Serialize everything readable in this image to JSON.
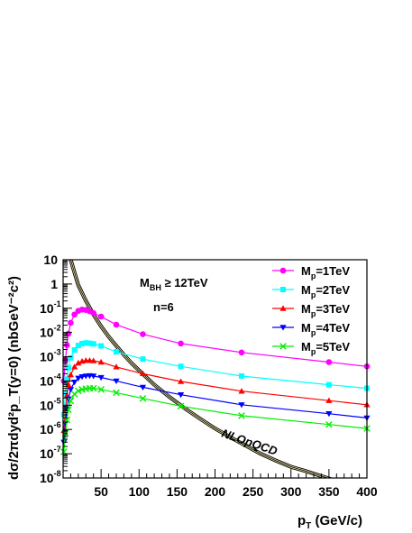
{
  "chart_data": {
    "type": "line",
    "title": "",
    "xlabel": {
      "main": "p",
      "sub": "T",
      "rest": " (GeV/c)"
    },
    "ylabel": "dσ/2πdyd²p_T(y=0) (nbGeV⁻²c²)",
    "xlim": [
      0,
      400
    ],
    "ylim": [
      1e-08,
      10
    ],
    "ylog": true,
    "grid": false,
    "legend_position": "top-right",
    "x_ticks": [
      "50",
      "100",
      "150",
      "200",
      "250",
      "300",
      "350",
      "400"
    ],
    "y_ticks": [
      {
        "base": "10",
        "exp": "-8"
      },
      {
        "base": "10",
        "exp": "-7"
      },
      {
        "base": "10",
        "exp": "-6"
      },
      {
        "base": "10",
        "exp": "-5"
      },
      {
        "base": "10",
        "exp": "-4"
      },
      {
        "base": "10",
        "exp": "-3"
      },
      {
        "base": "10",
        "exp": "-2"
      },
      {
        "base": "10",
        "exp": "-1"
      },
      {
        "base": "1",
        "exp": ""
      },
      {
        "base": "10",
        "exp": ""
      }
    ],
    "annotations": {
      "mbh": {
        "main": "M",
        "sub": "BH",
        "rest": " ≥ 12TeV"
      },
      "n": "n=6",
      "nlo": "NLOpQCD"
    },
    "series": [
      {
        "name": "M_p=1TeV",
        "label_main": "M",
        "label_sub": "p",
        "label_rest": "=1TeV",
        "color": "#ff00ff",
        "marker": "circle",
        "x": [
          1,
          3,
          5,
          7,
          10,
          15,
          20,
          25,
          30,
          35,
          40,
          50,
          70,
          105,
          155,
          235,
          350,
          400
        ],
        "y": [
          0.0001,
          0.0007,
          0.003,
          0.009,
          0.025,
          0.055,
          0.078,
          0.088,
          0.085,
          0.075,
          0.063,
          0.045,
          0.021,
          0.0085,
          0.0035,
          0.0015,
          0.0006,
          0.0004
        ]
      },
      {
        "name": "M_p=2TeV",
        "label_main": "M",
        "label_sub": "p",
        "label_rest": "=2TeV",
        "color": "#00ffff",
        "marker": "square",
        "x": [
          1,
          3,
          5,
          7,
          10,
          15,
          20,
          25,
          30,
          35,
          40,
          50,
          70,
          105,
          155,
          235,
          350,
          400
        ],
        "y": [
          4e-06,
          3e-05,
          0.00012,
          0.00035,
          0.0009,
          0.0019,
          0.0029,
          0.0035,
          0.0037,
          0.0036,
          0.0034,
          0.0028,
          0.0016,
          0.0008,
          0.0004,
          0.00016,
          7e-05,
          5e-05
        ]
      },
      {
        "name": "M_p=3TeV",
        "label_main": "M",
        "label_sub": "p",
        "label_rest": "=3TeV",
        "color": "#ff0000",
        "marker": "triangle-up",
        "x": [
          1,
          3,
          5,
          7,
          10,
          15,
          20,
          25,
          30,
          35,
          40,
          50,
          70,
          105,
          155,
          235,
          350,
          400
        ],
        "y": [
          9e-07,
          6e-06,
          2.5e-05,
          7e-05,
          0.00018,
          0.00038,
          0.00055,
          0.00065,
          0.0007,
          0.0007,
          0.00068,
          0.0006,
          0.00038,
          0.0002,
          9.5e-05,
          3.8e-05,
          1.55e-05,
          1.05e-05
        ]
      },
      {
        "name": "M_p=4TeV",
        "label_main": "M",
        "label_sub": "p",
        "label_rest": "=4TeV",
        "color": "#0000ff",
        "marker": "triangle-down",
        "x": [
          1,
          3,
          5,
          7,
          10,
          15,
          20,
          25,
          30,
          35,
          40,
          50,
          70,
          105,
          155,
          235,
          350,
          400
        ],
        "y": [
          3e-07,
          1.8e-06,
          7e-06,
          1.8e-05,
          4.5e-05,
          9e-05,
          0.00013,
          0.00015,
          0.00016,
          0.000165,
          0.00016,
          0.00014,
          0.0001,
          5.5e-05,
          2.7e-05,
          1.05e-05,
          4.5e-06,
          3e-06
        ]
      },
      {
        "name": "M_p=5TeV",
        "label_main": "M",
        "label_sub": "p",
        "label_rest": "=5TeV",
        "color": "#00ee00",
        "marker": "cross",
        "x": [
          1,
          3,
          5,
          7,
          10,
          15,
          20,
          25,
          30,
          35,
          40,
          50,
          70,
          105,
          155,
          235,
          350,
          400
        ],
        "y": [
          1.2e-07,
          7e-07,
          2.5e-06,
          6.5e-06,
          1.5e-05,
          2.9e-05,
          3.9e-05,
          4.5e-05,
          4.8e-05,
          5e-05,
          5e-05,
          4.5e-05,
          3.3e-05,
          1.9e-05,
          9.2e-06,
          3.7e-06,
          1.6e-06,
          1.1e-06
        ]
      }
    ],
    "reference_curve": {
      "name": "NLOpQCD",
      "color": "#000000",
      "band_color": "#e8e0a0",
      "x": [
        10,
        20,
        30,
        40,
        50,
        60,
        70,
        80,
        90,
        100,
        120,
        140,
        160,
        180,
        200,
        220,
        240,
        260,
        280,
        300,
        320,
        340,
        360,
        380,
        400
      ],
      "y": [
        10,
        0.9,
        0.2,
        0.055,
        0.018,
        0.0068,
        0.0028,
        0.0012,
        0.00055,
        0.00027,
        7e-05,
        2.2e-05,
        7.5e-06,
        2.8e-06,
        1.1e-06,
        4.8e-07,
        2.2e-07,
        1e-07,
        5.2e-08,
        2.9e-08,
        1.9e-08,
        1.2e-08,
        7.5e-09,
        5e-09,
        3.7e-09
      ]
    }
  }
}
